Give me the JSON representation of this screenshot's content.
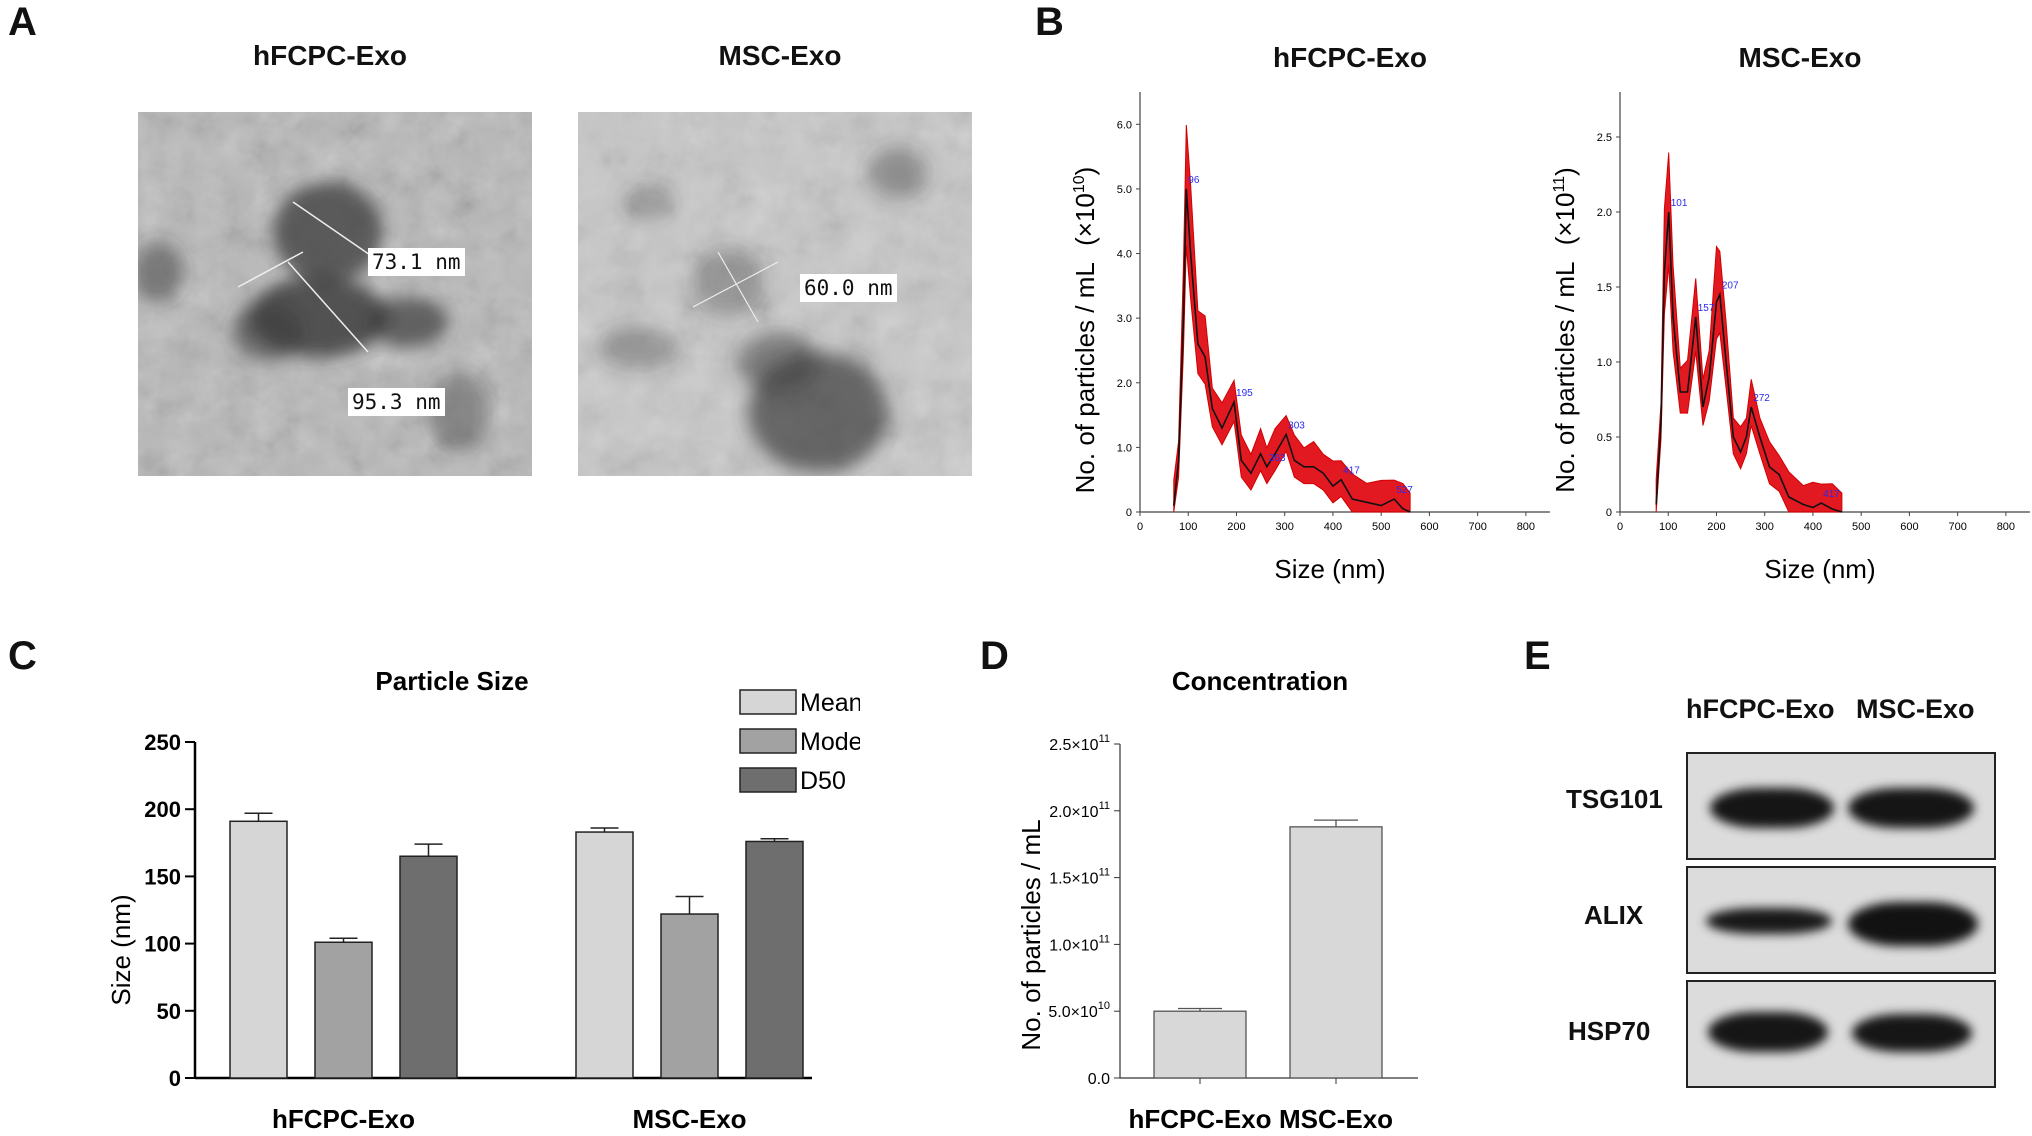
{
  "panels": {
    "A": {
      "letter": "A",
      "col_labels": [
        "hFCPC-Exo",
        "MSC-Exo"
      ],
      "measure_labels_left": [
        "73.1 nm",
        "95.3 nm"
      ],
      "measure_labels_right": [
        "60.0 nm"
      ]
    },
    "B": {
      "letter": "B",
      "xlabel": "Size (nm)",
      "charts": [
        {
          "title": "hFCPC-Exo",
          "ylabel_main": "No. of particles / mL",
          "ylabel_exp": "(×10",
          "ylabel_sup": "10",
          "ylabel_close": ")",
          "y_ticks": [
            "0",
            "1.0",
            "2.0",
            "3.0",
            "4.0",
            "5.0",
            "6.0"
          ],
          "x_ticks": [
            "0",
            "100",
            "200",
            "300",
            "400",
            "500",
            "600",
            "700",
            "800"
          ],
          "peak_labels": [
            "96",
            "195",
            "263",
            "303",
            "417",
            "527"
          ]
        },
        {
          "title": "MSC-Exo",
          "ylabel_main": "No. of particles / mL",
          "ylabel_exp": "(×10",
          "ylabel_sup": "11",
          "ylabel_close": ")",
          "y_ticks": [
            "0",
            "0.5",
            "1.0",
            "1.5",
            "2.0",
            "2.5"
          ],
          "x_ticks": [
            "0",
            "100",
            "200",
            "300",
            "400",
            "500",
            "600",
            "700",
            "800"
          ],
          "peak_labels": [
            "101",
            "157",
            "207",
            "272",
            "417"
          ]
        }
      ]
    },
    "C": {
      "letter": "C",
      "legend": [
        "Mean",
        "Mode",
        "D50"
      ],
      "y_ticks": [
        "0",
        "50",
        "100",
        "150",
        "200",
        "250"
      ]
    },
    "D": {
      "letter": "D",
      "y_ticks": [
        "0.0",
        "5.0×10",
        "1.0×10",
        "1.5×10",
        "2.0×10",
        "2.5×10"
      ],
      "y_tick_sups": [
        "",
        "10",
        "11",
        "11",
        "11",
        "11"
      ]
    },
    "E": {
      "letter": "E",
      "col_labels": [
        "hFCPC-Exo",
        "MSC-Exo"
      ],
      "rows": [
        "TSG101",
        "ALIX",
        "HSP70"
      ]
    }
  },
  "chart_data": [
    {
      "type": "line",
      "title": "hFCPC-Exo",
      "xlabel": "Size (nm)",
      "ylabel": "No. of particles / mL (×10^10)",
      "xlim": [
        0,
        850
      ],
      "ylim": [
        0,
        6.5
      ],
      "x": [
        70,
        80,
        90,
        96,
        105,
        120,
        135,
        150,
        170,
        195,
        210,
        230,
        250,
        263,
        280,
        303,
        320,
        340,
        360,
        380,
        400,
        417,
        440,
        470,
        500,
        527,
        545,
        560
      ],
      "series": [
        {
          "name": "",
          "values": [
            0.1,
            0.8,
            3.0,
            5.0,
            4.0,
            2.6,
            2.4,
            1.6,
            1.3,
            1.7,
            0.8,
            0.6,
            0.9,
            0.7,
            0.9,
            1.2,
            0.8,
            0.7,
            0.7,
            0.6,
            0.4,
            0.5,
            0.2,
            0.15,
            0.1,
            0.2,
            0.05,
            0.0
          ]
        }
      ],
      "peaks": [
        96,
        195,
        263,
        303,
        417,
        527
      ]
    },
    {
      "type": "line",
      "title": "MSC-Exo",
      "xlabel": "Size (nm)",
      "ylabel": "No. of particles / mL (×10^11)",
      "xlim": [
        0,
        850
      ],
      "ylim": [
        0,
        2.8
      ],
      "x": [
        75,
        85,
        92,
        101,
        110,
        125,
        140,
        157,
        172,
        185,
        200,
        207,
        220,
        235,
        250,
        262,
        272,
        290,
        310,
        330,
        350,
        380,
        400,
        417,
        440,
        460
      ],
      "series": [
        {
          "name": "",
          "values": [
            0.05,
            0.6,
            1.6,
            2.0,
            1.3,
            0.8,
            0.8,
            1.3,
            0.7,
            0.9,
            1.4,
            1.45,
            1.0,
            0.5,
            0.4,
            0.5,
            0.7,
            0.5,
            0.3,
            0.25,
            0.1,
            0.05,
            0.03,
            0.06,
            0.02,
            0.0
          ]
        }
      ],
      "peaks": [
        101,
        157,
        207,
        272,
        417
      ]
    },
    {
      "type": "bar",
      "title": "Particle Size",
      "categories": [
        "hFCPC-Exo",
        "MSC-Exo"
      ],
      "ylabel": "Size (nm)",
      "ylim": [
        0,
        250
      ],
      "series": [
        {
          "name": "Mean",
          "values": [
            191,
            183
          ],
          "errors": [
            6,
            3
          ]
        },
        {
          "name": "Mode",
          "values": [
            101,
            122
          ],
          "errors": [
            3,
            13
          ]
        },
        {
          "name": "D50",
          "values": [
            165,
            176
          ],
          "errors": [
            9,
            2
          ]
        }
      ],
      "legend": "top-right"
    },
    {
      "type": "bar",
      "title": "Concentration",
      "categories": [
        "hFCPC-Exo",
        "MSC-Exo"
      ],
      "ylabel": "No. of particles / mL",
      "ylim": [
        0,
        250000000000.0
      ],
      "values": [
        50000000000.0,
        188000000000.0
      ],
      "errors": [
        2000000000.0,
        5000000000.0
      ]
    }
  ]
}
